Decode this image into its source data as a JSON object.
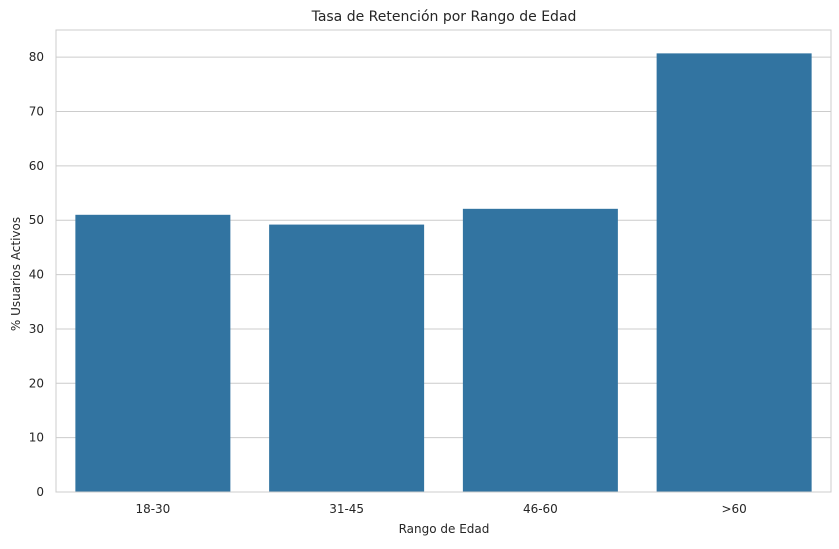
{
  "chart_data": {
    "type": "bar",
    "title": "Tasa de Retención por Rango de Edad",
    "xlabel": "Rango de Edad",
    "ylabel": "% Usuarios Activos",
    "categories": [
      "18-30",
      "31-45",
      "46-60",
      ">60"
    ],
    "values": [
      51.0,
      49.2,
      52.1,
      80.7
    ],
    "ylim": [
      0,
      85
    ],
    "yticks": [
      0,
      10,
      20,
      30,
      40,
      50,
      60,
      70,
      80
    ],
    "grid": true,
    "bar_color": "#3274a1",
    "grid_color": "#cccccc",
    "spine_color": "#cccccc"
  }
}
